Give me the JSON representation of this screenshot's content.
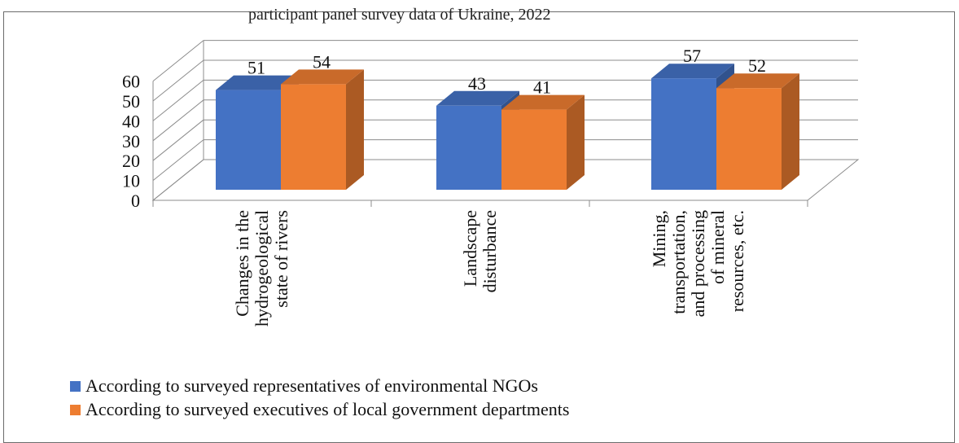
{
  "header": {
    "clipped_text": "participant panel survey data of Ukraine, 2022"
  },
  "colors": {
    "ngo": "#4472C4",
    "gov": "#ED7D31",
    "grid": "#8c8c8c"
  },
  "chart_data": {
    "type": "bar",
    "categories": [
      [
        "Changes in the",
        "hydrogeological",
        "state of rivers"
      ],
      [
        "Landscape",
        "disturbance"
      ],
      [
        "Mining,",
        "transportation,",
        "and processing",
        "of mineral",
        "resources, etc."
      ]
    ],
    "series": [
      {
        "name": "According to surveyed representatives of environmental NGOs",
        "values": [
          51,
          43,
          57
        ]
      },
      {
        "name": "According to surveyed executives of local government departments",
        "values": [
          54,
          41,
          52
        ]
      }
    ],
    "ylim": [
      0,
      60
    ],
    "yticks": [
      0,
      10,
      20,
      30,
      40,
      50,
      60
    ],
    "grid": true,
    "legend_position": "bottom-left",
    "style": "3d-clustered-column"
  }
}
